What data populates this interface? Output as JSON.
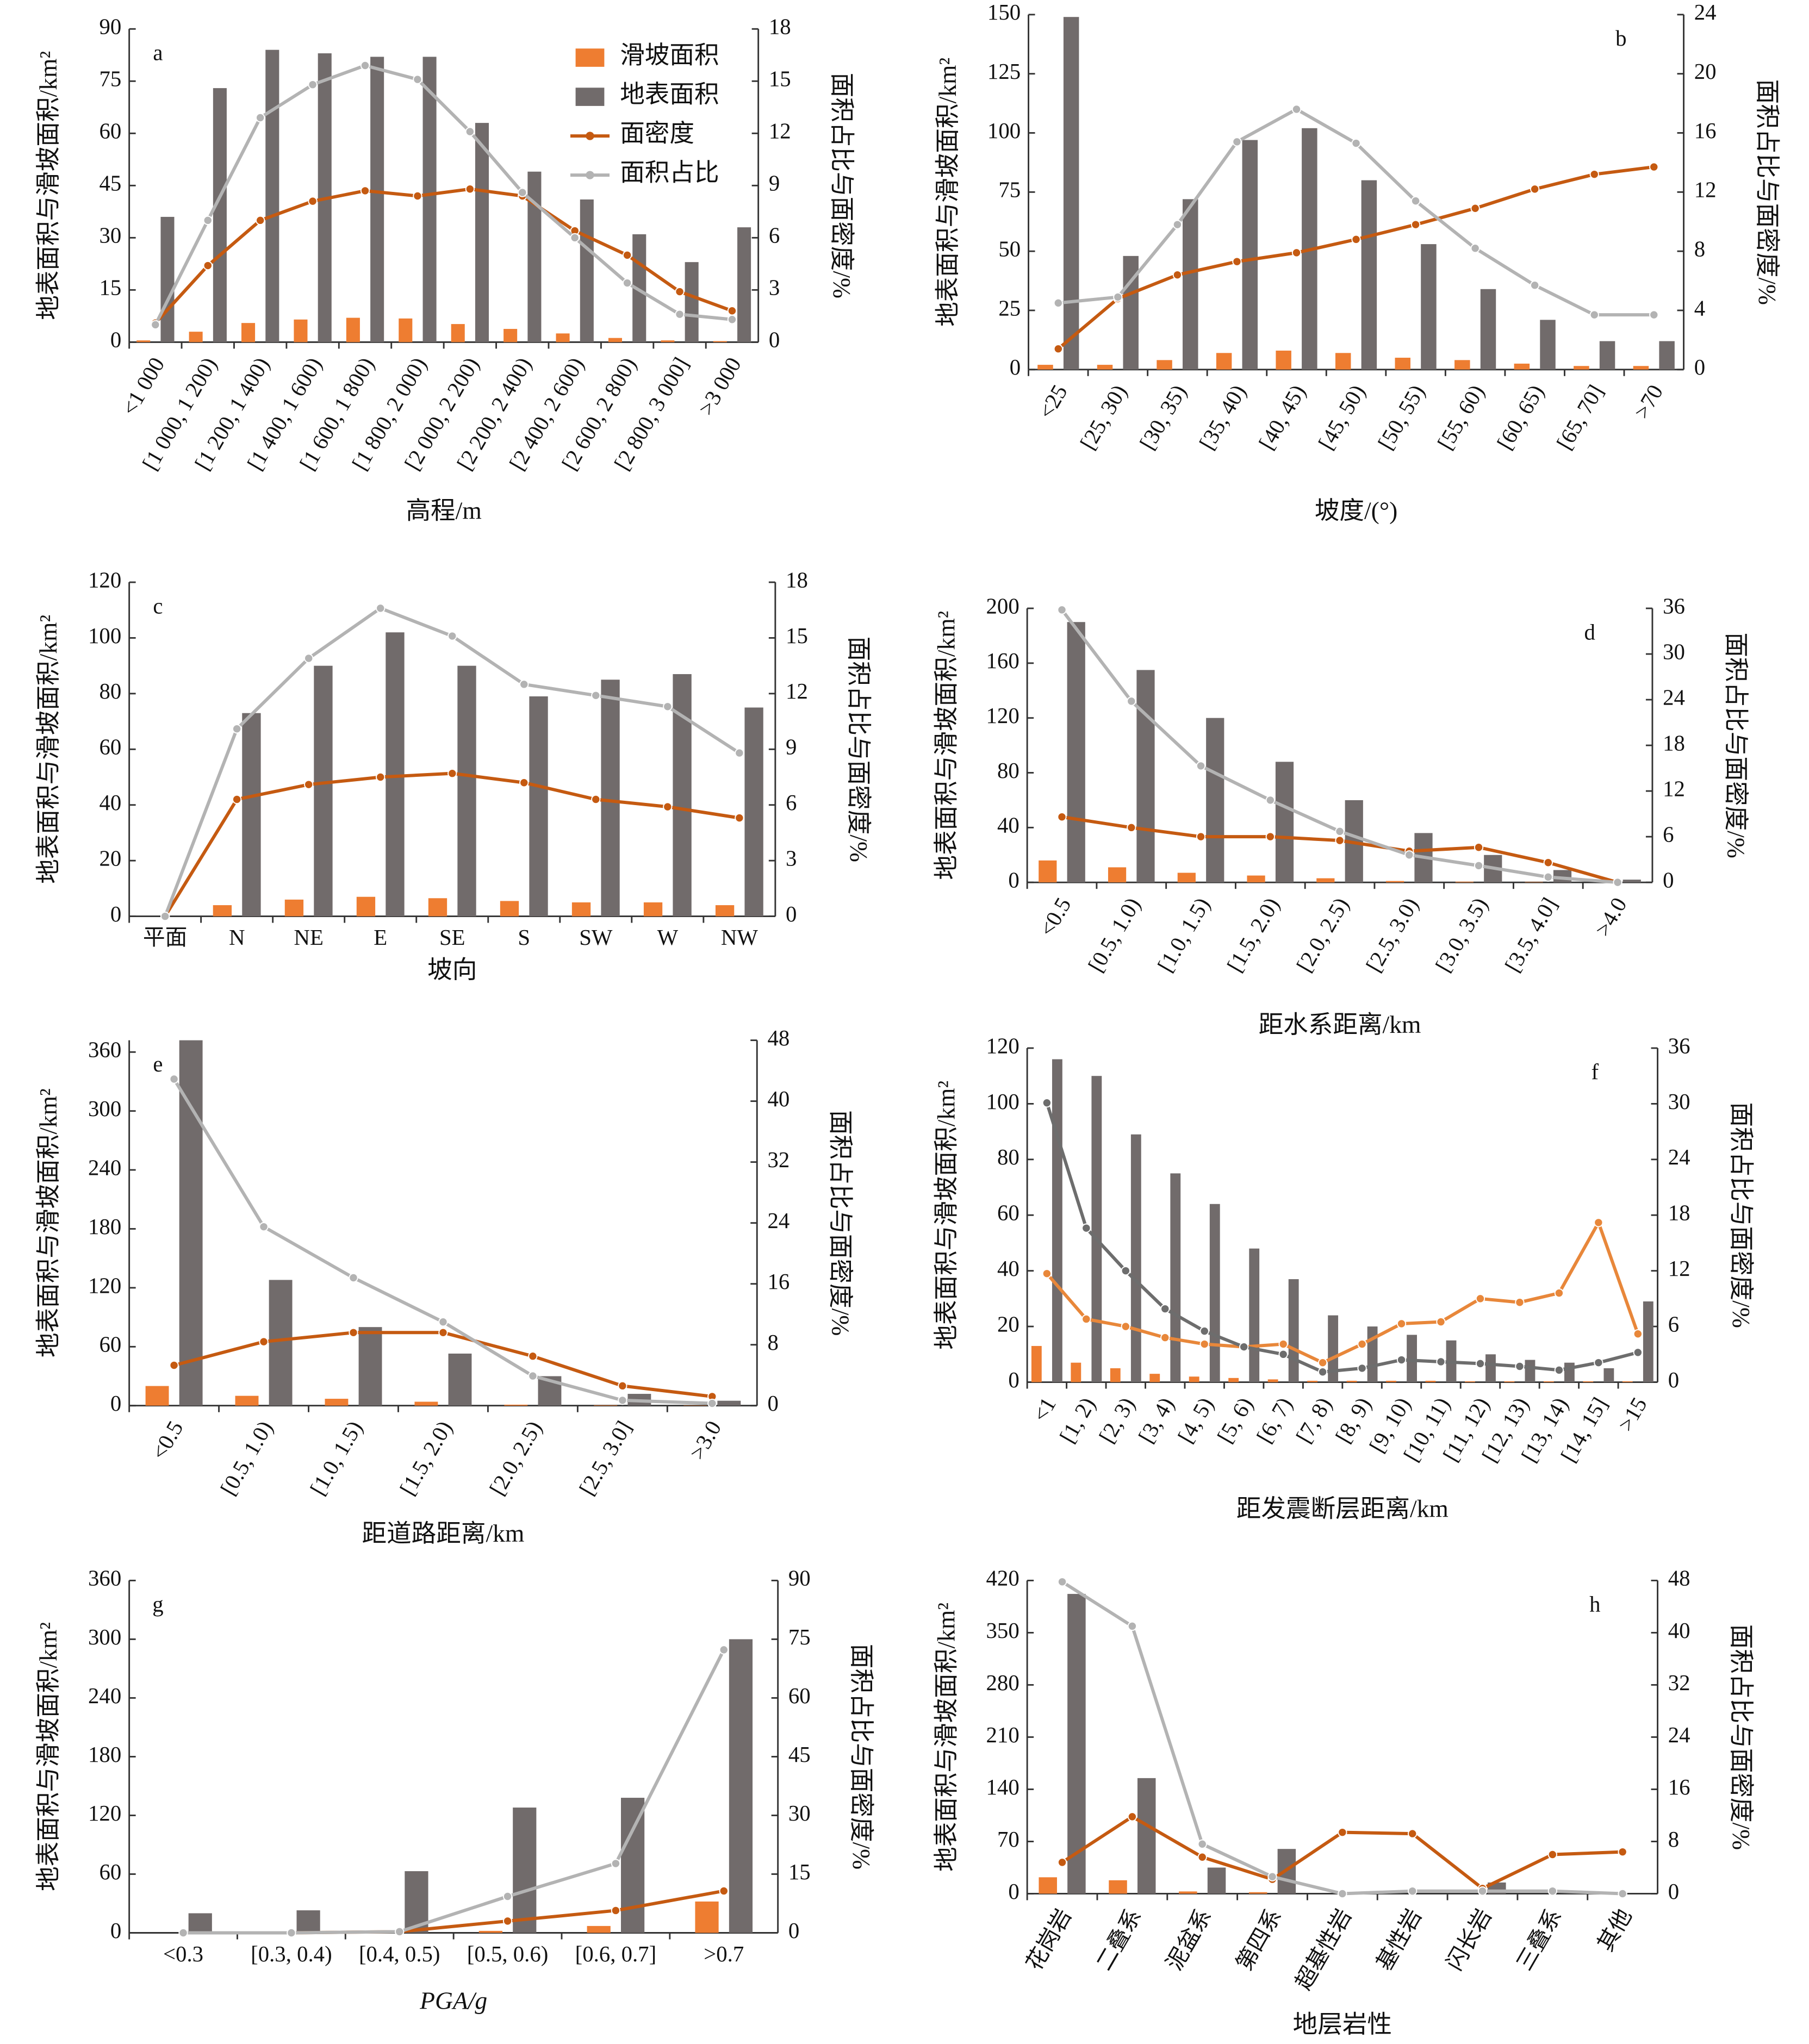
{
  "chart_data": [
    {
      "type": "combo",
      "label": "a",
      "x_label": "高程/m",
      "y_label": "地表面积与滑坡面积/km²",
      "y2_label": "面积占比与面密度/%",
      "legend": "upper right",
      "categories": [
        "<1 000",
        "[1 000, 1 200)",
        "[1 200, 1 400)",
        "[1 400, 1 600)",
        "[1 600, 1 800)",
        "[1 800, 2 000)",
        "[2 000, 2 200)",
        "[2 200, 2 400)",
        "[2 400, 2 600)",
        "[2 600, 2 800)",
        "[2 800, 3 000]",
        ">3 000"
      ],
      "series": [
        {
          "name": "滑坡面积",
          "type": "bar",
          "color": "#ee7d31",
          "values": [
            0.5,
            3,
            5.5,
            6.5,
            7,
            6.8,
            5.2,
            3.8,
            2.5,
            1.2,
            0.5,
            0.3
          ]
        },
        {
          "name": "地表面积",
          "type": "bar",
          "color": "#716b6b",
          "values": [
            36,
            73,
            84,
            83,
            82,
            82,
            63,
            49,
            41,
            31,
            23,
            33
          ]
        },
        {
          "name": "面密度",
          "type": "line",
          "axis": "y2",
          "color": "#c55a11",
          "values": [
            1.1,
            4.4,
            7.0,
            8.1,
            8.7,
            8.4,
            8.8,
            8.4,
            6.4,
            5.0,
            2.9,
            1.8
          ]
        },
        {
          "name": "面积占比",
          "type": "line",
          "axis": "y2",
          "color": "#b3b3b3",
          "values": [
            1.0,
            7.0,
            12.9,
            14.8,
            15.9,
            15.1,
            12.1,
            8.6,
            6.0,
            3.4,
            1.6,
            1.3
          ]
        }
      ],
      "ylim": [
        0,
        90
      ],
      "yticks": [
        0,
        15,
        30,
        45,
        60,
        75,
        90
      ],
      "y2lim": [
        0,
        18
      ],
      "y2ticks": [
        0,
        3,
        6,
        9,
        12,
        15,
        18
      ]
    },
    {
      "type": "combo",
      "label": "b",
      "x_label": "坡度/(°)",
      "y_label": "地表面积与滑坡面积/km²",
      "y2_label": "面积占比与面密度/%",
      "categories": [
        "<25",
        "[25, 30)",
        "[30, 35)",
        "[35, 40)",
        "[40, 45)",
        "[45, 50)",
        "[50, 55)",
        "[55, 60)",
        "[60, 65)",
        "[65, 70]",
        ">70"
      ],
      "series": [
        {
          "type": "bar",
          "color": "#ee7d31",
          "values": [
            2,
            2,
            4,
            7,
            8,
            7,
            5,
            4,
            2.5,
            1.5,
            1.5
          ]
        },
        {
          "type": "bar",
          "color": "#716b6b",
          "values": [
            149,
            48,
            72,
            97,
            102,
            80,
            53,
            34,
            21,
            12,
            12
          ]
        },
        {
          "type": "line",
          "axis": "y2",
          "color": "#c55a11",
          "values": [
            1.4,
            4.8,
            6.4,
            7.3,
            7.9,
            8.8,
            9.8,
            10.9,
            12.2,
            13.2,
            13.7
          ]
        },
        {
          "type": "line",
          "axis": "y2",
          "color": "#b3b3b3",
          "values": [
            4.5,
            4.9,
            9.8,
            15.4,
            17.6,
            15.3,
            11.4,
            8.2,
            5.7,
            3.7,
            3.7
          ]
        }
      ],
      "ylim": [
        0,
        150
      ],
      "yticks": [
        0,
        25,
        50,
        75,
        100,
        125,
        150
      ],
      "y2lim": [
        0,
        24
      ],
      "y2ticks": [
        0,
        4,
        8,
        12,
        16,
        20,
        24
      ]
    },
    {
      "type": "combo",
      "label": "c",
      "x_label": "坡向",
      "y_label": "地表面积与滑坡面积/km²",
      "y2_label": "面积占比与面密度/%",
      "categories": [
        "平面",
        "N",
        "NE",
        "E",
        "SE",
        "S",
        "SW",
        "W",
        "NW"
      ],
      "series": [
        {
          "type": "bar",
          "color": "#ee7d31",
          "values": [
            0,
            4,
            6,
            7,
            6.5,
            5.5,
            5,
            5,
            4
          ]
        },
        {
          "type": "bar",
          "color": "#716b6b",
          "values": [
            0,
            73,
            90,
            102,
            90,
            79,
            85,
            87,
            75
          ]
        },
        {
          "type": "line",
          "axis": "y2",
          "color": "#c55a11",
          "values": [
            0,
            6.3,
            7.1,
            7.5,
            7.7,
            7.2,
            6.3,
            5.9,
            5.3
          ]
        },
        {
          "type": "line",
          "axis": "y2",
          "color": "#b3b3b3",
          "values": [
            0,
            10.1,
            13.9,
            16.6,
            15.1,
            12.5,
            11.9,
            11.3,
            8.8
          ]
        }
      ],
      "ylim": [
        0,
        120
      ],
      "yticks": [
        0,
        20,
        40,
        60,
        80,
        100,
        120
      ],
      "y2lim": [
        0,
        18
      ],
      "y2ticks": [
        0,
        3,
        6,
        9,
        12,
        15,
        18
      ]
    },
    {
      "type": "combo",
      "label": "d",
      "x_label": "距水系距离/km",
      "y_label": "地表面积与滑坡面积/km²",
      "y2_label": "面积占比与面密度/%",
      "categories": [
        "<0.5",
        "[0.5, 1.0)",
        "[1.0, 1.5)",
        "[1.5, 2.0)",
        "[2.0, 2.5)",
        "[2.5, 3.0)",
        "[3.0, 3.5)",
        "[3.5, 4.0]",
        ">4.0"
      ],
      "series": [
        {
          "type": "bar",
          "color": "#ee7d31",
          "values": [
            16,
            11,
            7,
            5,
            3,
            1,
            0.5,
            0.3,
            0
          ]
        },
        {
          "type": "bar",
          "color": "#716b6b",
          "values": [
            190,
            155,
            120,
            88,
            60,
            36,
            20,
            9,
            2
          ]
        },
        {
          "type": "line",
          "axis": "y2",
          "color": "#c55a11",
          "values": [
            8.6,
            7.2,
            6.0,
            6.0,
            5.5,
            4.1,
            4.6,
            2.6,
            0
          ]
        },
        {
          "type": "line",
          "axis": "y2",
          "color": "#b3b3b3",
          "values": [
            35.8,
            23.8,
            15.3,
            10.8,
            6.7,
            3.6,
            2.2,
            0.7,
            0
          ]
        }
      ],
      "ylim": [
        0,
        200
      ],
      "yticks": [
        0,
        40,
        80,
        120,
        160,
        200
      ],
      "y2lim": [
        0,
        36
      ],
      "y2ticks": [
        0,
        6,
        12,
        18,
        24,
        30,
        36
      ]
    },
    {
      "type": "combo",
      "label": "e",
      "x_label": "距道路距离/km",
      "y_label": "地表面积与滑坡面积/km²",
      "y2_label": "面积占比与面密度/%",
      "categories": [
        "<0.5",
        "[0.5, 1.0)",
        "[1.0, 1.5)",
        "[1.5, 2.0)",
        "[2.0, 2.5)",
        "[2.5, 3.0]",
        ">3.0"
      ],
      "series": [
        {
          "type": "bar",
          "color": "#ee7d31",
          "values": [
            20,
            10,
            7,
            4,
            1,
            0.5,
            0.3
          ]
        },
        {
          "type": "bar",
          "color": "#716b6b",
          "values": [
            372,
            128,
            80,
            53,
            30,
            12,
            5
          ]
        },
        {
          "type": "line",
          "axis": "y2",
          "color": "#c55a11",
          "values": [
            5.3,
            8.4,
            9.6,
            9.6,
            6.5,
            2.6,
            1.2
          ]
        },
        {
          "type": "line",
          "axis": "y2",
          "color": "#b3b3b3",
          "values": [
            42.9,
            23.5,
            16.8,
            11.0,
            3.9,
            0.7,
            0.3
          ]
        }
      ],
      "ylim": [
        0,
        372
      ],
      "yticks": [
        0,
        60,
        120,
        180,
        240,
        300,
        360
      ],
      "y2lim": [
        0,
        48
      ],
      "y2ticks": [
        0,
        8,
        16,
        24,
        32,
        40,
        48
      ]
    },
    {
      "type": "combo",
      "label": "f",
      "x_label": "距发震断层距离/km",
      "y_label": "地表面积与滑坡面积/km²",
      "y2_label": "面积占比与面密度/%",
      "categories": [
        "<1",
        "[1, 2)",
        "[2, 3)",
        "[3, 4)",
        "[4, 5)",
        "[5, 6)",
        "[6, 7)",
        "[7, 8)",
        "[8, 9)",
        "[9, 10)",
        "[10, 11)",
        "[11, 12)",
        "[12, 13)",
        "[13, 14)",
        "[14, 15]",
        ">15"
      ],
      "series": [
        {
          "type": "bar",
          "color": "#ee7d31",
          "values": [
            13,
            7,
            5,
            3,
            2,
            1.5,
            1,
            0.5,
            0.5,
            0.5,
            0.5,
            0.3,
            0.3,
            0.3,
            0.3,
            0.3
          ]
        },
        {
          "type": "bar",
          "color": "#716b6b",
          "values": [
            116,
            110,
            89,
            75,
            64,
            48,
            37,
            24,
            20,
            17,
            15,
            10,
            8,
            7,
            5,
            29
          ]
        },
        {
          "type": "line",
          "axis": "y2",
          "color": "#e8873a",
          "values": [
            11.7,
            6.8,
            6.0,
            4.8,
            4.1,
            3.8,
            4.1,
            2.1,
            4.1,
            6.3,
            6.5,
            9.0,
            8.6,
            9.6,
            17.2,
            5.2
          ]
        },
        {
          "type": "line",
          "axis": "y2",
          "color": "#6d6d6d",
          "values": [
            30.1,
            16.6,
            12.0,
            7.9,
            5.5,
            3.8,
            3.0,
            1.1,
            1.5,
            2.4,
            2.2,
            2.0,
            1.7,
            1.3,
            2.1,
            3.2
          ]
        }
      ],
      "ylim": [
        0,
        120
      ],
      "yticks": [
        0,
        20,
        40,
        60,
        80,
        100,
        120
      ],
      "y2lim": [
        0,
        36
      ],
      "y2ticks": [
        0,
        6,
        12,
        18,
        24,
        30,
        36
      ]
    },
    {
      "type": "combo",
      "label": "g",
      "x_label": "PGA/g",
      "y_label": "地表面积与滑坡面积/km²",
      "y2_label": "面积占比与面密度/%",
      "categories": [
        "<0.3",
        "[0.3, 0.4)",
        "[0.4, 0.5)",
        "[0.5, 0.6)",
        "[0.6, 0.7]",
        ">0.7"
      ],
      "series": [
        {
          "type": "bar",
          "color": "#ee7d31",
          "values": [
            0,
            0,
            0.5,
            2,
            7,
            32
          ]
        },
        {
          "type": "bar",
          "color": "#716b6b",
          "values": [
            20,
            23,
            63,
            128,
            138,
            300
          ]
        },
        {
          "type": "line",
          "axis": "y2",
          "color": "#c55a11",
          "values": [
            0,
            0,
            0.3,
            3,
            5.7,
            10.7
          ]
        },
        {
          "type": "line",
          "axis": "y2",
          "color": "#b3b3b3",
          "values": [
            0,
            0,
            0.3,
            9.3,
            17.7,
            72.3
          ]
        }
      ],
      "ylim": [
        0,
        360
      ],
      "yticks": [
        0,
        60,
        120,
        180,
        240,
        300,
        360
      ],
      "y2lim": [
        0,
        90
      ],
      "y2ticks": [
        0,
        15,
        30,
        45,
        60,
        75,
        90
      ]
    },
    {
      "type": "combo",
      "label": "h",
      "x_label": "地层岩性",
      "y_label": "地表面积与滑坡面积/km²",
      "y2_label": "面积占比与面密度/%",
      "categories": [
        "花岗岩",
        "二叠系",
        "泥盆系",
        "第四系",
        "超基性岩",
        "基性岩",
        "闪长岩",
        "三叠系",
        "其他"
      ],
      "series": [
        {
          "type": "bar",
          "color": "#ee7d31",
          "values": [
            22,
            18,
            3,
            2,
            0,
            0,
            0,
            0,
            0
          ]
        },
        {
          "type": "bar",
          "color": "#716b6b",
          "values": [
            402,
            155,
            35,
            60,
            0,
            0,
            15,
            0,
            0
          ]
        },
        {
          "type": "line",
          "axis": "y2",
          "color": "#c55a11",
          "values": [
            4.8,
            11.8,
            5.6,
            2.2,
            9.4,
            9.2,
            0.8,
            6.0,
            6.4
          ]
        },
        {
          "type": "line",
          "axis": "y2",
          "color": "#b3b3b3",
          "values": [
            47.8,
            41.0,
            7.6,
            2.6,
            0,
            0.4,
            0.4,
            0.4,
            0
          ]
        }
      ],
      "ylim": [
        0,
        420
      ],
      "yticks": [
        0,
        70,
        140,
        210,
        280,
        350,
        420
      ],
      "y2lim": [
        0,
        48
      ],
      "y2ticks": [
        0,
        8,
        16,
        24,
        32,
        40,
        48
      ]
    }
  ]
}
